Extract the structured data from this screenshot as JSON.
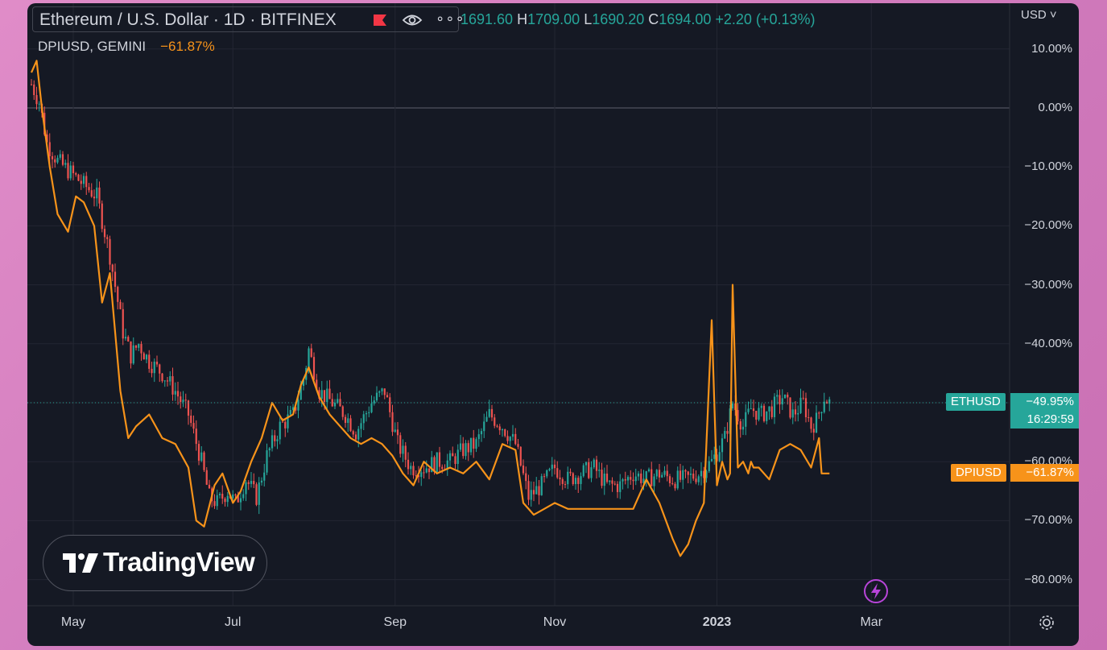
{
  "header": {
    "symbol_title": "Ethereum / U.S. Dollar · 1D · BITFINEX",
    "ohlc": {
      "o_val": "1691.60",
      "h_label": "H",
      "h_val": "1709.00",
      "l_label": "L",
      "l_val": "1690.20",
      "c_label": "C",
      "c_val": "1694.00",
      "change": "+2.20 (+0.13%)"
    },
    "compare_symbol": "DPIUSD, GEMINI",
    "compare_value": "−61.87%",
    "currency": "USD ˅"
  },
  "price_tags": {
    "eth_name": "ETHUSD",
    "eth_pct": "−49.95%",
    "eth_countdown": "16:29:59",
    "dpi_name": "DPIUSD",
    "dpi_pct": "−61.87%"
  },
  "branding": {
    "logo_text": "TradingView"
  },
  "icons": [
    "flag-icon",
    "eye-icon",
    "more-icon",
    "tradingview-logo-icon",
    "bolt-icon",
    "settings-icon"
  ],
  "colors": {
    "up": "#26a69a",
    "down": "#ef5350",
    "compare": "#f7931a",
    "background": "#151924",
    "grid": "#232632"
  },
  "chart_data": {
    "type": "line",
    "title": "Ethereum / U.S. Dollar · 1D · BITFINEX",
    "y_unit": "%",
    "ylim": [
      -85,
      15
    ],
    "y_ticks": [
      "10.00%",
      "0.00%",
      "−10.00%",
      "−20.00%",
      "−30.00%",
      "−40.00%",
      "−50.00%",
      "−60.00%",
      "−70.00%",
      "−80.00%"
    ],
    "x_ticks": [
      "May",
      "Jul",
      "Sep",
      "Nov",
      "2023",
      "Mar"
    ],
    "x_tick_days": [
      16,
      77,
      139,
      200,
      262,
      321
    ],
    "grid": true,
    "legend": "top-left",
    "series": [
      {
        "name": "Ethereum / U.S. Dollar · 1D · BITFINEX",
        "style": "candles-approximated-as-closes",
        "x_days": [
          0,
          3,
          6,
          10,
          15,
          20,
          25,
          30,
          35,
          38,
          41,
          45,
          50,
          55,
          60,
          65,
          68,
          71,
          75,
          78,
          82,
          86,
          90,
          95,
          100,
          104,
          106,
          110,
          115,
          120,
          124,
          130,
          135,
          140,
          145,
          150,
          155,
          160,
          165,
          170,
          175,
          180,
          185,
          190,
          195,
          200,
          205,
          210,
          215,
          220,
          225,
          230,
          235,
          240,
          245,
          250,
          255,
          260,
          265,
          268,
          272,
          275,
          279,
          283,
          287,
          291,
          295,
          298,
          300,
          303,
          305
        ],
        "values": [
          4,
          1,
          -6,
          -9,
          -11,
          -13,
          -15,
          -25,
          -38,
          -42,
          -40,
          -43,
          -45,
          -48,
          -52,
          -60,
          -66,
          -67,
          -65,
          -67,
          -63,
          -66,
          -59,
          -54,
          -52,
          -46,
          -41,
          -48,
          -50,
          -52,
          -55,
          -50,
          -48,
          -57,
          -61,
          -61,
          -60,
          -60,
          -58,
          -57,
          -52,
          -54,
          -57,
          -66,
          -64,
          -61,
          -63,
          -62,
          -61,
          -64,
          -64,
          -62,
          -63,
          -62,
          -63,
          -63,
          -62,
          -60,
          -56,
          -50,
          -54,
          -51,
          -52,
          -51,
          -49,
          -52,
          -50,
          -54,
          -53,
          -49,
          -50
        ]
      },
      {
        "name": "DPIUSD, GEMINI",
        "x_days": [
          0,
          2,
          4,
          7,
          10,
          14,
          17,
          20,
          24,
          27,
          30,
          34,
          37,
          40,
          45,
          50,
          55,
          60,
          63,
          66,
          70,
          73,
          77,
          80,
          84,
          88,
          92,
          96,
          100,
          103,
          106,
          110,
          114,
          118,
          122,
          126,
          130,
          134,
          138,
          142,
          146,
          150,
          155,
          160,
          165,
          170,
          175,
          180,
          185,
          188,
          192,
          196,
          200,
          205,
          210,
          215,
          220,
          225,
          230,
          235,
          240,
          245,
          248,
          251,
          254,
          257,
          260,
          262,
          264,
          266,
          267,
          268,
          270,
          272,
          274,
          275,
          276,
          278,
          282,
          286,
          290,
          294,
          298,
          301,
          302,
          305
        ],
        "values": [
          6,
          8,
          0,
          -10,
          -18,
          -21,
          -15,
          -16,
          -20,
          -33,
          -28,
          -48,
          -56,
          -54,
          -52,
          -56,
          -57,
          -61,
          -70,
          -71,
          -64,
          -62,
          -67,
          -65,
          -60,
          -56,
          -50,
          -53,
          -52,
          -47,
          -44,
          -49,
          -52,
          -54,
          -56,
          -57,
          -56,
          -57,
          -59,
          -62,
          -64,
          -60,
          -62,
          -61,
          -62,
          -60,
          -63,
          -57,
          -58,
          -67,
          -69,
          -68,
          -67,
          -68,
          -68,
          -68,
          -68,
          -68,
          -68,
          -63,
          -67,
          -73,
          -76,
          -74,
          -70,
          -67,
          -36,
          -64,
          -60,
          -63,
          -62,
          -30,
          -61,
          -60,
          -62,
          -60,
          -61,
          -61,
          -63,
          -58,
          -57,
          -58,
          -61,
          -56,
          -62,
          -62
        ]
      }
    ]
  }
}
